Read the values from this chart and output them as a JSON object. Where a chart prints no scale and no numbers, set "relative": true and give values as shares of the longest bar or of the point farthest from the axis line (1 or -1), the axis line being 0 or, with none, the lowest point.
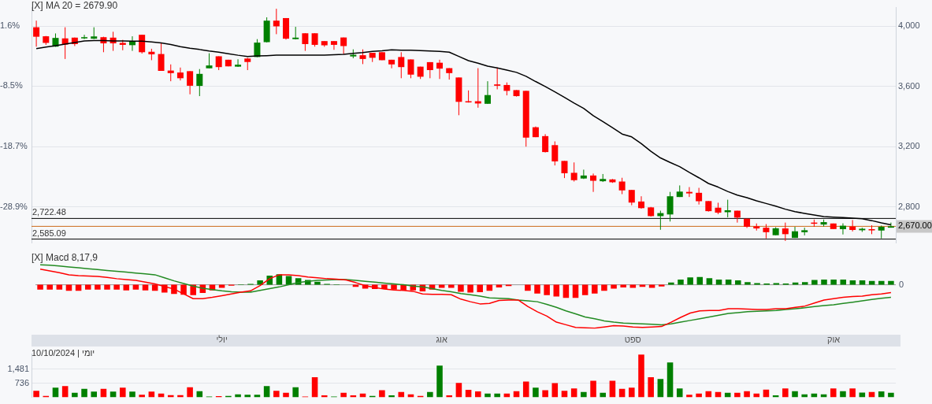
{
  "chart_data": [
    {
      "type": "candlestick",
      "title": "[X] MA 20 = 2679.90",
      "categories": [
        null,
        null,
        null,
        null,
        null,
        null,
        null,
        null,
        null,
        null,
        null,
        null,
        null,
        null,
        null,
        null,
        null,
        null,
        null,
        null,
        null,
        null,
        null,
        null,
        null,
        null,
        null,
        null,
        null,
        null,
        null,
        null,
        null,
        null,
        null,
        null,
        null,
        null,
        null,
        null,
        null,
        null,
        null,
        null,
        null,
        null,
        null,
        null,
        null,
        null,
        null,
        null,
        null,
        null,
        null,
        null,
        null,
        null,
        null,
        null,
        null,
        null,
        null,
        null,
        null,
        null,
        null,
        null,
        null,
        null,
        null,
        null,
        null,
        null,
        null,
        null,
        null,
        null,
        null,
        null,
        null,
        null,
        null,
        null,
        null,
        null,
        null,
        null,
        null,
        null
      ],
      "ohlc": [
        [
          3994,
          4038,
          3865,
          3931
        ],
        [
          3934,
          3936,
          3877,
          3890
        ],
        [
          3865,
          3953,
          3864,
          3923
        ],
        [
          3920,
          3994,
          3783,
          3879
        ],
        [
          3925,
          3926,
          3869,
          3882
        ],
        [
          3920,
          3944,
          3915,
          3928
        ],
        [
          3918,
          3994,
          3915,
          3933
        ],
        [
          3928,
          3931,
          3828,
          3887
        ],
        [
          3925,
          3964,
          3837,
          3887
        ],
        [
          3890,
          3910,
          3841,
          3877
        ],
        [
          3875,
          3934,
          3837,
          3902
        ],
        [
          3944,
          3944,
          3819,
          3828
        ],
        [
          3831,
          3851,
          3775,
          3814
        ],
        [
          3816,
          3890,
          3704,
          3704
        ],
        [
          3706,
          3747,
          3635,
          3689
        ],
        [
          3693,
          3726,
          3640,
          3655
        ],
        [
          3702,
          3702,
          3548,
          3605
        ],
        [
          3604,
          3716,
          3536,
          3684
        ],
        [
          3721,
          3821,
          3721,
          3740
        ],
        [
          3801,
          3801,
          3709,
          3729
        ],
        [
          3778,
          3778,
          3734,
          3734
        ],
        [
          3732,
          3781,
          3730,
          3745
        ],
        [
          3786,
          3791,
          3709,
          3763
        ],
        [
          3796,
          3915,
          3795,
          3892
        ],
        [
          3895,
          4060,
          3893,
          4038
        ],
        [
          4038,
          4117,
          3948,
          4000
        ],
        [
          4055,
          4055,
          3912,
          3918
        ],
        [
          3915,
          3997,
          3913,
          3925
        ],
        [
          3954,
          3954,
          3837,
          3882
        ],
        [
          3954,
          3954,
          3865,
          3877
        ],
        [
          3902,
          3902,
          3864,
          3874
        ],
        [
          3902,
          3902,
          3844,
          3877
        ],
        [
          3926,
          3926,
          3816,
          3869
        ],
        [
          3800,
          3847,
          3788,
          3811
        ],
        [
          3808,
          3847,
          3749,
          3783
        ],
        [
          3824,
          3824,
          3763,
          3791
        ],
        [
          3828,
          3828,
          3775,
          3775
        ],
        [
          3778,
          3778,
          3721,
          3747
        ],
        [
          3796,
          3828,
          3655,
          3729
        ],
        [
          3780,
          3780,
          3655,
          3679
        ],
        [
          3732,
          3732,
          3650,
          3665
        ],
        [
          3762,
          3762,
          3655,
          3709
        ],
        [
          3758,
          3778,
          3650,
          3719
        ],
        [
          3722,
          3722,
          3646,
          3689
        ],
        [
          3660,
          3660,
          3409,
          3498
        ],
        [
          3502,
          3574,
          3493,
          3497
        ],
        [
          3502,
          3722,
          3459,
          3487
        ],
        [
          3485,
          3635,
          3484,
          3543
        ],
        [
          3614,
          3726,
          3581,
          3605
        ],
        [
          3610,
          3627,
          3541,
          3571
        ],
        [
          3576,
          3576,
          3533,
          3536
        ],
        [
          3571,
          3571,
          3200,
          3260
        ],
        [
          3329,
          3334,
          3263,
          3263
        ],
        [
          3270,
          3283,
          3161,
          3164
        ],
        [
          3210,
          3235,
          3075,
          3102
        ],
        [
          3105,
          3105,
          2991,
          3023
        ],
        [
          3026,
          3095,
          2968,
          2977
        ],
        [
          2988,
          3047,
          2985,
          3008
        ],
        [
          3008,
          3021,
          2899,
          2973
        ],
        [
          2970,
          3018,
          2965,
          2985
        ],
        [
          2982,
          2985,
          2959,
          2963
        ],
        [
          2968,
          2993,
          2884,
          2909
        ],
        [
          2912,
          2912,
          2810,
          2828
        ],
        [
          2835,
          2870,
          2787,
          2791
        ],
        [
          2796,
          2799,
          2735,
          2738
        ],
        [
          2738,
          2774,
          2647,
          2758
        ],
        [
          2749,
          2899,
          2702,
          2870
        ],
        [
          2865,
          2942,
          2865,
          2901
        ],
        [
          2899,
          2931,
          2865,
          2889
        ],
        [
          2893,
          2926,
          2815,
          2837
        ],
        [
          2838,
          2838,
          2768,
          2771
        ],
        [
          2794,
          2827,
          2751,
          2761
        ],
        [
          2764,
          2847,
          2730,
          2777
        ],
        [
          2774,
          2774,
          2695,
          2728
        ],
        [
          2721,
          2721,
          2659,
          2667
        ],
        [
          2670,
          2689,
          2642,
          2656
        ],
        [
          2661,
          2685,
          2590,
          2631
        ],
        [
          2611,
          2664,
          2611,
          2657
        ],
        [
          2656,
          2695,
          2573,
          2618
        ],
        [
          2593,
          2667,
          2593,
          2637
        ],
        [
          2631,
          2661,
          2610,
          2644
        ],
        [
          2695,
          2715,
          2667,
          2689
        ],
        [
          2682,
          2715,
          2669,
          2698
        ],
        [
          2689,
          2689,
          2652,
          2652
        ],
        [
          2651,
          2690,
          2616,
          2674
        ],
        [
          2669,
          2712,
          2636,
          2646
        ],
        [
          2644,
          2661,
          2633,
          2654
        ],
        [
          2651,
          2677,
          2618,
          2644
        ],
        [
          2642,
          2675,
          2590,
          2667
        ],
        [
          2661,
          2695,
          2661,
          2670
        ]
      ],
      "colors": [
        "#ff0000",
        "#ff0000",
        "#008000",
        "#ff0000",
        "#ff0000",
        "#008000",
        "#008000",
        "#ff0000",
        "#ff0000",
        "#ff0000",
        "#008000",
        "#ff0000",
        "#ff0000",
        "#ff0000",
        "#ff0000",
        "#ff0000",
        "#ff0000",
        "#008000",
        "#008000",
        "#ff0000",
        "#ff0000",
        "#008000",
        "#ff0000",
        "#008000",
        "#008000",
        "#ff0000",
        "#ff0000",
        "#008000",
        "#ff0000",
        "#ff0000",
        "#ff0000",
        "#ff0000",
        "#ff0000",
        "#008000",
        "#ff0000",
        "#ff0000",
        "#ff0000",
        "#ff0000",
        "#ff0000",
        "#ff0000",
        "#ff0000",
        "#ff0000",
        "#ff0000",
        "#ff0000",
        "#ff0000",
        "#ff0000",
        "#ff0000",
        "#008000",
        "#ff0000",
        "#ff0000",
        "#ff0000",
        "#ff0000",
        "#ff0000",
        "#ff0000",
        "#ff0000",
        "#ff0000",
        "#ff0000",
        "#008000",
        "#ff0000",
        "#008000",
        "#ff0000",
        "#ff0000",
        "#ff0000",
        "#ff0000",
        "#ff0000",
        "#008000",
        "#008000",
        "#008000",
        "#ff0000",
        "#ff0000",
        "#ff0000",
        "#ff0000",
        "#008000",
        "#ff0000",
        "#ff0000",
        "#ff0000",
        "#ff0000",
        "#008000",
        "#ff0000",
        "#008000",
        "#008000",
        "#ff0000",
        "#008000",
        "#ff0000",
        "#008000",
        "#ff0000",
        "#008000",
        "#ff0000",
        "#008000",
        "#008000"
      ],
      "series": [
        {
          "type": "line",
          "color": "#000000",
          "values": [
            3852,
            3862,
            3872,
            3882,
            3893,
            3903,
            3905,
            3905,
            3903,
            3903,
            3902,
            3902,
            3897,
            3890,
            3879,
            3865,
            3854,
            3846,
            3836,
            3828,
            3818,
            3808,
            3800,
            3803,
            3805,
            3808,
            3808,
            3808,
            3808,
            3808,
            3809,
            3811,
            3814,
            3821,
            3826,
            3833,
            3837,
            3844,
            3842,
            3841,
            3839,
            3836,
            3834,
            3828,
            3800,
            3772,
            3755,
            3735,
            3724,
            3709,
            3694,
            3668,
            3633,
            3600,
            3564,
            3528,
            3490,
            3454,
            3406,
            3367,
            3326,
            3284,
            3265,
            3220,
            3169,
            3125,
            3095,
            3067,
            3029,
            2993,
            2955,
            2931,
            2902,
            2878,
            2861,
            2840,
            2822,
            2804,
            2784,
            2768,
            2756,
            2745,
            2735,
            2731,
            2728,
            2725,
            2721,
            2708,
            2693,
            2680
          ]
        }
      ],
      "ylim": [
        2560,
        4125
      ],
      "yticks": [
        {
          "value": 2800,
          "label": "2,800"
        },
        {
          "value": 3200,
          "label": "3,200"
        },
        {
          "value": 3600,
          "label": "3,600"
        },
        {
          "value": 4000,
          "label": "4,000"
        }
      ],
      "y2lim": [
        -34.98,
        4.77
      ],
      "y2ticks": [
        {
          "value": -28.9,
          "label": "-28.9%"
        },
        {
          "value": -18.7,
          "label": "-18.7%"
        },
        {
          "value": -8.5,
          "label": "-8.5%"
        },
        {
          "value": 1.6,
          "label": "1.6%"
        }
      ],
      "ref_lines": [
        {
          "axis": "y",
          "value": 2722.48,
          "label": "2,722.48",
          "color": "#000000"
        },
        {
          "axis": "y",
          "value": 2670,
          "label": "2,670.00",
          "color": "#cc6a1a"
        },
        {
          "axis": "y",
          "value": 2585.09,
          "label": "2,585.09",
          "color": "#000000"
        }
      ],
      "grid": "y",
      "tick_labels": "y"
    },
    {
      "type": "bar",
      "title": "[X] Macd 8,17,9",
      "relative": true,
      "categories": [
        null,
        null,
        null,
        null,
        null,
        null,
        null,
        null,
        null,
        null,
        null,
        null,
        null,
        null,
        null,
        null,
        null,
        null,
        null,
        "יולי",
        null,
        null,
        null,
        null,
        null,
        null,
        null,
        null,
        null,
        null,
        null,
        null,
        null,
        null,
        null,
        null,
        null,
        null,
        null,
        null,
        null,
        null,
        "אוג",
        null,
        null,
        null,
        null,
        null,
        null,
        null,
        null,
        null,
        null,
        null,
        null,
        null,
        null,
        null,
        null,
        null,
        null,
        null,
        "ספט",
        null,
        null,
        null,
        null,
        null,
        null,
        null,
        null,
        null,
        null,
        null,
        null,
        null,
        null,
        null,
        null,
        null,
        null,
        null,
        null,
        "אוק",
        null,
        null,
        null,
        null,
        null,
        null
      ],
      "series": [
        {
          "type": "bar",
          "colors": [
            "#ff0000",
            "#ff0000",
            "#ff0000",
            "#ff0000",
            "#ff0000",
            "#ff0000",
            "#ff0000",
            "#ff0000",
            "#ff0000",
            "#ff0000",
            "#ff0000",
            "#ff0000",
            "#ff0000",
            "#ff0000",
            "#ff0000",
            "#ff0000",
            "#ff0000",
            "#ff0000",
            "#ff0000",
            "#ff0000",
            "#ff0000",
            "#008000",
            "#008000",
            "#008000",
            "#008000",
            "#008000",
            "#008000",
            "#008000",
            "#008000",
            "#008000",
            "#008000",
            "#008000",
            "#ff0000",
            "#ff0000",
            "#ff0000",
            "#ff0000",
            "#ff0000",
            "#ff0000",
            "#ff0000",
            "#ff0000",
            "#ff0000",
            "#ff0000",
            "#ff0000",
            "#ff0000",
            "#ff0000",
            "#ff0000",
            "#ff0000",
            "#ff0000",
            "#ff0000",
            "#ff0000",
            "#ff0000",
            "#ff0000",
            "#ff0000",
            "#ff0000",
            "#ff0000",
            "#ff0000",
            "#ff0000",
            "#ff0000",
            "#ff0000",
            "#ff0000",
            "#ff0000",
            "#ff0000",
            "#ff0000",
            "#ff0000",
            "#ff0000",
            "#ff0000",
            "#008000",
            "#008000",
            "#008000",
            "#008000",
            "#008000",
            "#008000",
            "#008000",
            "#008000",
            "#008000",
            "#008000",
            "#008000",
            "#008000",
            "#008000",
            "#008000",
            "#008000",
            "#008000",
            "#008000",
            "#008000",
            "#008000",
            "#008000",
            "#008000",
            "#008000",
            "#008000",
            "#008000"
          ],
          "values": [
            -0.11,
            -0.11,
            -0.11,
            -0.14,
            -0.14,
            -0.11,
            -0.11,
            -0.11,
            -0.11,
            -0.13,
            -0.11,
            -0.13,
            -0.14,
            -0.18,
            -0.21,
            -0.23,
            -0.24,
            -0.19,
            -0.13,
            -0.07,
            -0.02,
            0.01,
            0.02,
            0.1,
            0.21,
            0.24,
            0.2,
            0.15,
            0.11,
            0.07,
            0.02,
            0.01,
            null,
            -0.05,
            -0.09,
            -0.1,
            -0.1,
            -0.11,
            -0.13,
            -0.13,
            -0.15,
            -0.11,
            -0.07,
            -0.07,
            -0.16,
            -0.18,
            -0.17,
            -0.14,
            -0.06,
            -0.03,
            null,
            -0.14,
            -0.2,
            -0.24,
            -0.27,
            -0.3,
            -0.3,
            -0.24,
            -0.2,
            -0.14,
            -0.09,
            -0.06,
            -0.07,
            -0.05,
            -0.07,
            -0.04,
            0.05,
            0.12,
            0.17,
            0.18,
            0.15,
            0.12,
            0.12,
            0.1,
            0.06,
            0.04,
            0.03,
            0.04,
            0.03,
            0.05,
            0.06,
            0.11,
            0.12,
            0.12,
            0.12,
            0.1,
            0.1,
            0.09,
            0.09,
            0.09
          ]
        },
        {
          "type": "line",
          "color": "#ff0000",
          "values": [
            0.36,
            0.32,
            0.28,
            0.23,
            0.21,
            0.2,
            0.19,
            0.17,
            0.14,
            0.12,
            0.1,
            0.06,
            0.02,
            -0.04,
            -0.1,
            -0.21,
            -0.32,
            -0.32,
            -0.29,
            -0.25,
            -0.21,
            -0.17,
            -0.14,
            -0.02,
            0.14,
            0.23,
            0.23,
            0.21,
            0.18,
            0.16,
            0.14,
            0.13,
            0.11,
            0.05,
            -0.02,
            -0.06,
            -0.1,
            -0.12,
            -0.13,
            -0.15,
            -0.21,
            -0.22,
            -0.22,
            -0.23,
            -0.33,
            -0.39,
            -0.44,
            -0.43,
            -0.36,
            -0.35,
            -0.35,
            -0.5,
            -0.62,
            -0.72,
            -0.86,
            -0.92,
            -0.98,
            -0.99,
            -1,
            -0.97,
            -0.94,
            -0.95,
            -0.97,
            -0.98,
            -0.97,
            -0.96,
            -0.86,
            -0.75,
            -0.65,
            -0.6,
            -0.59,
            -0.59,
            -0.55,
            -0.55,
            -0.56,
            -0.57,
            -0.57,
            -0.55,
            -0.55,
            -0.52,
            -0.49,
            -0.42,
            -0.35,
            -0.32,
            -0.29,
            -0.27,
            -0.26,
            -0.23,
            -0.21,
            -0.18
          ]
        },
        {
          "type": "line",
          "color": "#228b22",
          "values": [
            0.46,
            0.45,
            0.43,
            0.41,
            0.39,
            0.37,
            0.35,
            0.33,
            0.31,
            0.29,
            0.27,
            0.25,
            0.23,
            0.16,
            0.09,
            0.03,
            -0.03,
            -0.08,
            -0.11,
            -0.14,
            -0.16,
            -0.17,
            -0.17,
            -0.13,
            -0.09,
            -0.05,
            0.0,
            0.05,
            0.08,
            0.1,
            0.11,
            0.12,
            0.12,
            0.1,
            0.08,
            0.06,
            0.04,
            0.02,
            0.0,
            -0.03,
            -0.05,
            -0.09,
            -0.13,
            -0.16,
            -0.2,
            -0.23,
            -0.26,
            -0.3,
            -0.31,
            -0.32,
            -0.35,
            -0.37,
            -0.39,
            -0.45,
            -0.52,
            -0.6,
            -0.67,
            -0.74,
            -0.78,
            -0.83,
            -0.86,
            -0.88,
            -0.89,
            -0.9,
            -0.91,
            -0.92,
            -0.9,
            -0.86,
            -0.82,
            -0.78,
            -0.74,
            -0.7,
            -0.66,
            -0.64,
            -0.62,
            -0.61,
            -0.6,
            -0.59,
            -0.57,
            -0.55,
            -0.53,
            -0.5,
            -0.48,
            -0.46,
            -0.43,
            -0.4,
            -0.37,
            -0.34,
            -0.31,
            -0.29
          ]
        }
      ],
      "ref_lines": [
        {
          "axis": "y",
          "value": 0,
          "label": "0",
          "color": "#999999"
        }
      ],
      "tick_labels": "x"
    },
    {
      "type": "bar",
      "categories": [
        null,
        null,
        null,
        null,
        null,
        null,
        null,
        null,
        null,
        null,
        null,
        null,
        null,
        null,
        null,
        null,
        null,
        null,
        null,
        null,
        null,
        null,
        null,
        null,
        null,
        null,
        null,
        null,
        null,
        null,
        null,
        null,
        null,
        null,
        null,
        null,
        null,
        null,
        null,
        null,
        null,
        null,
        null,
        null,
        null,
        null,
        null,
        null,
        null,
        null,
        null,
        null,
        null,
        null,
        null,
        null,
        null,
        null,
        null,
        null,
        null,
        null,
        null,
        null,
        null,
        null,
        null,
        null,
        null,
        null,
        null,
        null,
        null,
        null,
        null,
        null,
        null,
        null,
        null,
        null,
        null,
        null,
        null,
        null,
        null,
        null,
        null,
        null,
        null,
        null
      ],
      "values": [
        340,
        70,
        500,
        590,
        230,
        440,
        300,
        440,
        300,
        500,
        300,
        130,
        300,
        190,
        110,
        110,
        530,
        320,
        40,
        60,
        70,
        150,
        130,
        130,
        590,
        340,
        230,
        530,
        40,
        1060,
        100,
        40,
        230,
        100,
        190,
        70,
        370,
        100,
        280,
        150,
        70,
        280,
        1670,
        100,
        750,
        390,
        310,
        190,
        190,
        190,
        320,
        830,
        500,
        370,
        740,
        340,
        460,
        280,
        870,
        230,
        870,
        440,
        500,
        2250,
        1060,
        960,
        1830,
        460,
        130,
        190,
        320,
        280,
        230,
        230,
        320,
        190,
        400,
        100,
        460,
        320,
        150,
        190,
        150,
        460,
        320,
        460,
        250,
        280,
        310,
        230
      ],
      "colors": [
        "#ff0000",
        "#ff0000",
        "#008000",
        "#ff0000",
        "#008000",
        "#008000",
        "#008000",
        "#ff0000",
        "#008000",
        "#ff0000",
        "#008000",
        "#ff0000",
        "#ff0000",
        "#ff0000",
        "#ff0000",
        "#ff0000",
        "#ff0000",
        "#008000",
        "#008000",
        "#ff0000",
        "#008000",
        "#008000",
        "#008000",
        "#008000",
        "#008000",
        "#ff0000",
        "#ff0000",
        "#008000",
        "#ff0000",
        "#ff0000",
        "#ff0000",
        "#008000",
        "#ff0000",
        "#ff0000",
        "#ff0000",
        "#008000",
        "#ff0000",
        "#008000",
        "#ff0000",
        "#ff0000",
        "#ff0000",
        "#008000",
        "#008000",
        "#ff0000",
        "#ff0000",
        "#ff0000",
        "#ff0000",
        "#008000",
        "#008000",
        "#ff0000",
        "#ff0000",
        "#ff0000",
        "#008000",
        "#ff0000",
        "#ff0000",
        "#ff0000",
        "#ff0000",
        "#008000",
        "#ff0000",
        "#008000",
        "#ff0000",
        "#ff0000",
        "#ff0000",
        "#ff0000",
        "#ff0000",
        "#008000",
        "#008000",
        "#008000",
        "#ff0000",
        "#ff0000",
        "#ff0000",
        "#ff0000",
        "#008000",
        "#ff0000",
        "#ff0000",
        "#ff0000",
        "#ff0000",
        "#008000",
        "#ff0000",
        "#008000",
        "#008000",
        "#008000",
        "#008000",
        "#ff0000",
        "#008000",
        "#ff0000",
        "#008000",
        "#ff0000",
        "#008000",
        "#008000"
      ],
      "ylim": [
        0,
        2276
      ],
      "yticks": [
        {
          "value": 736,
          "label": "736"
        },
        {
          "value": 1481,
          "label": "1,481"
        }
      ],
      "grid": "y",
      "tick_labels": "y",
      "annotations": [
        "יומי | 10/10/2024"
      ]
    }
  ]
}
